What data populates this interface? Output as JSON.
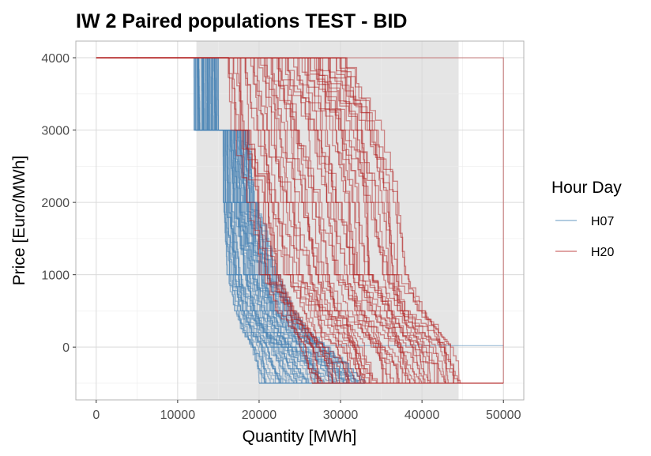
{
  "chart_data": {
    "type": "line",
    "title": "IW 2 Paired populations TEST - BID",
    "xlabel": "Quantity [MWh]",
    "ylabel": "Price [Euro/MWh]",
    "xlim": [
      -2500,
      52500
    ],
    "ylim": [
      -730,
      4230
    ],
    "x_ticks": [
      0,
      10000,
      20000,
      30000,
      40000,
      50000
    ],
    "x_tick_labels": [
      "0",
      "10000",
      "20000",
      "30000",
      "40000",
      "50000"
    ],
    "y_ticks": [
      0,
      1000,
      2000,
      3000,
      4000
    ],
    "y_tick_labels": [
      "0",
      "1000",
      "2000",
      "3000",
      "4000"
    ],
    "grid": true,
    "shaded_region": {
      "x": [
        12300,
        44500
      ],
      "color": "#e5e5e5"
    },
    "legend": {
      "title": "Hour Day",
      "placement": "right",
      "entries": [
        {
          "label": "H07",
          "color": "#4682b4"
        },
        {
          "label": "H20",
          "color": "#b22222"
        }
      ]
    },
    "series": [
      {
        "name": "H07",
        "color": "#4682b4",
        "curve_count": 60,
        "template_x_min": [
          12000,
          12000,
          15500,
          15500,
          16000,
          17000,
          18000,
          19000,
          19800,
          20000
        ],
        "template_x_max": [
          15000,
          15000,
          18500,
          19500,
          22000,
          24000,
          26000,
          28000,
          31000,
          33000
        ],
        "template_y": [
          4000,
          3000,
          3000,
          2000,
          1000,
          500,
          200,
          0,
          -300,
          -500
        ],
        "long_tail": {
          "x_start": 28000,
          "x_end": 50000,
          "y": [
            20,
            20
          ]
        }
      },
      {
        "name": "H20",
        "color": "#b22222",
        "curve_count": 60,
        "template_x_min": [
          0,
          16000,
          16500,
          18500,
          20000,
          22000,
          23500,
          25000,
          26000,
          26500
        ],
        "template_x_max": [
          29000,
          30000,
          35000,
          37000,
          38000,
          40000,
          42000,
          43500,
          44500,
          44700
        ],
        "template_y": [
          4000,
          4000,
          3000,
          2000,
          1000,
          500,
          200,
          0,
          -300,
          -500
        ],
        "long_tail": {
          "x_start": 29000,
          "x_end": 50000,
          "y": [
            4000,
            -500
          ]
        },
        "step_from_zero": {
          "x": [
            0,
            16300
          ],
          "y": 4000
        }
      }
    ]
  }
}
